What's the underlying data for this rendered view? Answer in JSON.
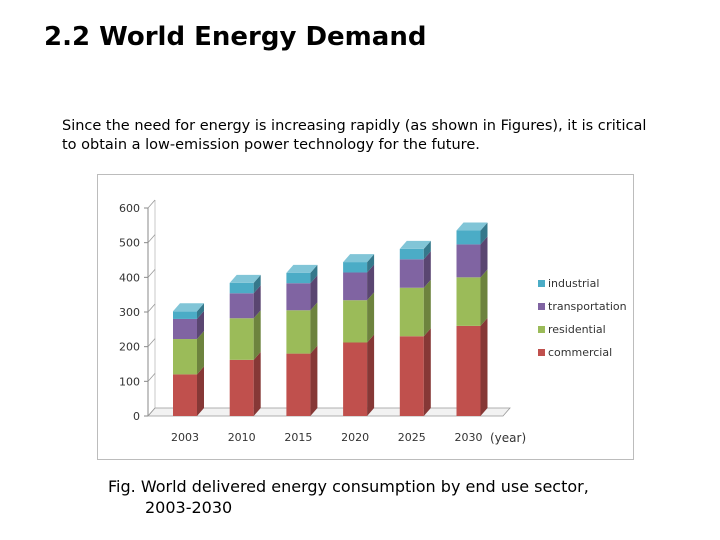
{
  "page": {
    "title": "2.2 World Energy Demand",
    "intro": "Since the need for energy is increasing rapidly (as shown in Figures),  it is critical to obtain a low-emission power technology for the future.",
    "caption_line1": "Fig. World delivered energy consumption by end use sector,",
    "caption_line2": "2003-2030"
  },
  "chart_data": {
    "type": "bar",
    "stacked": true,
    "style": "3d",
    "categories": [
      "2003",
      "2010",
      "2015",
      "2020",
      "2025",
      "2030"
    ],
    "xlabel": "(year)",
    "ylabel": "",
    "ylim": [
      0,
      600
    ],
    "yticks": [
      0,
      100,
      200,
      300,
      400,
      500,
      600
    ],
    "grid": false,
    "legend_position": "right",
    "series": [
      {
        "name": "commercial",
        "color": "#c0504d",
        "values": [
          120,
          162,
          180,
          212,
          230,
          260
        ]
      },
      {
        "name": "residential",
        "color": "#9bbb59",
        "values": [
          102,
          120,
          125,
          122,
          140,
          140
        ]
      },
      {
        "name": "transportation",
        "color": "#8064a2",
        "values": [
          58,
          72,
          78,
          80,
          82,
          95
        ]
      },
      {
        "name": "industrial",
        "color": "#4bacc6",
        "values": [
          22,
          30,
          30,
          30,
          30,
          40
        ]
      }
    ]
  }
}
